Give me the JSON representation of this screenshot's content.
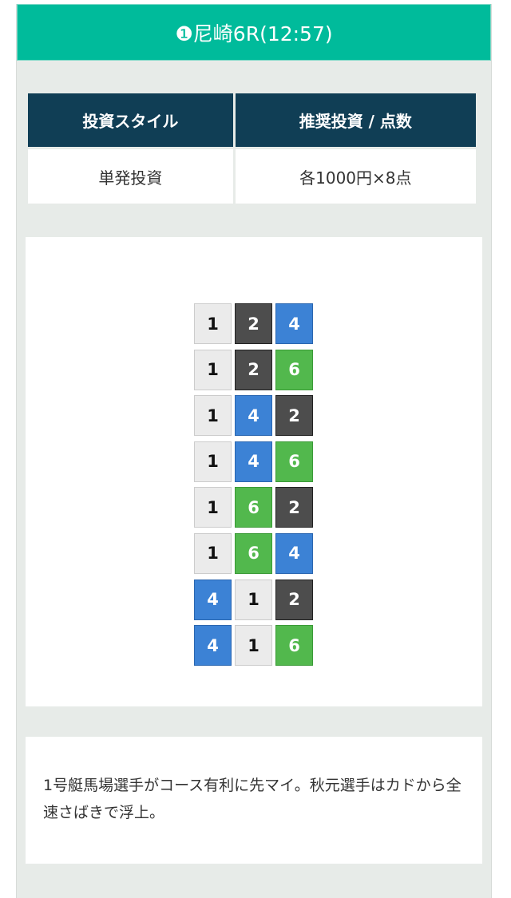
{
  "header": {
    "title": "❶尼崎6R(12:57)"
  },
  "table": {
    "headers": [
      "投資スタイル",
      "推奨投資 / 点数"
    ],
    "values": [
      "単発投資",
      "各1000円×8点"
    ]
  },
  "boat_colors": {
    "1": {
      "bg": "#ebebeb",
      "fg": "#111111",
      "border": "#cccccc"
    },
    "2": {
      "bg": "#4d4d4d",
      "fg": "#ffffff",
      "border": "#222222"
    },
    "4": {
      "bg": "#3c82d5",
      "fg": "#ffffff",
      "border": "#2a66b0"
    },
    "6": {
      "bg": "#52b84d",
      "fg": "#ffffff",
      "border": "#3a9a36"
    }
  },
  "tickets": [
    [
      "1",
      "2",
      "4"
    ],
    [
      "1",
      "2",
      "6"
    ],
    [
      "1",
      "4",
      "2"
    ],
    [
      "1",
      "4",
      "6"
    ],
    [
      "1",
      "6",
      "2"
    ],
    [
      "1",
      "6",
      "4"
    ],
    [
      "4",
      "1",
      "2"
    ],
    [
      "4",
      "1",
      "6"
    ]
  ],
  "comment": "1号艇馬場選手がコース有利に先マイ。秋元選手はカドから全速さばきで浮上。"
}
